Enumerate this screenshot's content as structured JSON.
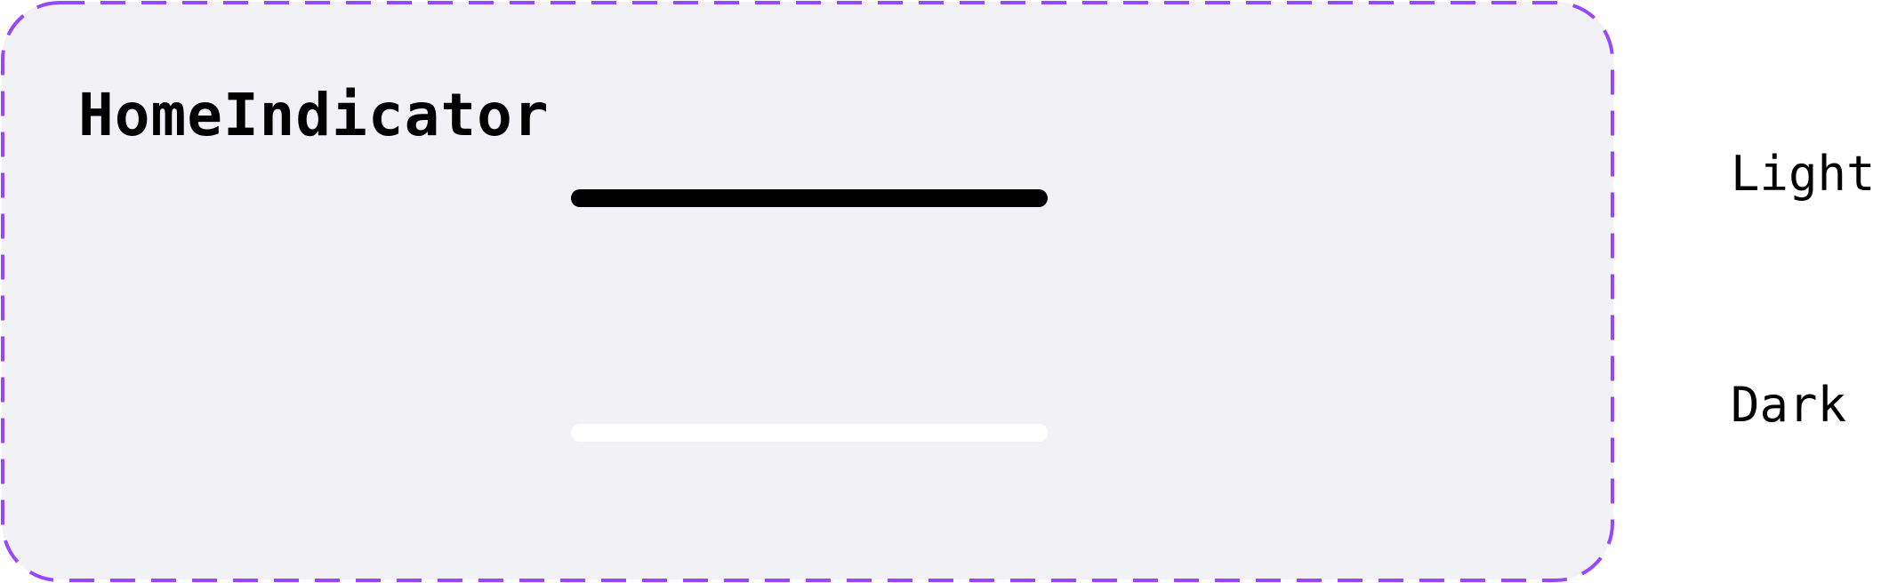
{
  "component": {
    "name": "HomeIndicator",
    "frame_border_color": "#9747FF",
    "frame_background": "#F2F1F6"
  },
  "variants": [
    {
      "label": "Light",
      "indicator_color": "#000000"
    },
    {
      "label": "Dark",
      "indicator_color": "#FFFFFF"
    }
  ]
}
